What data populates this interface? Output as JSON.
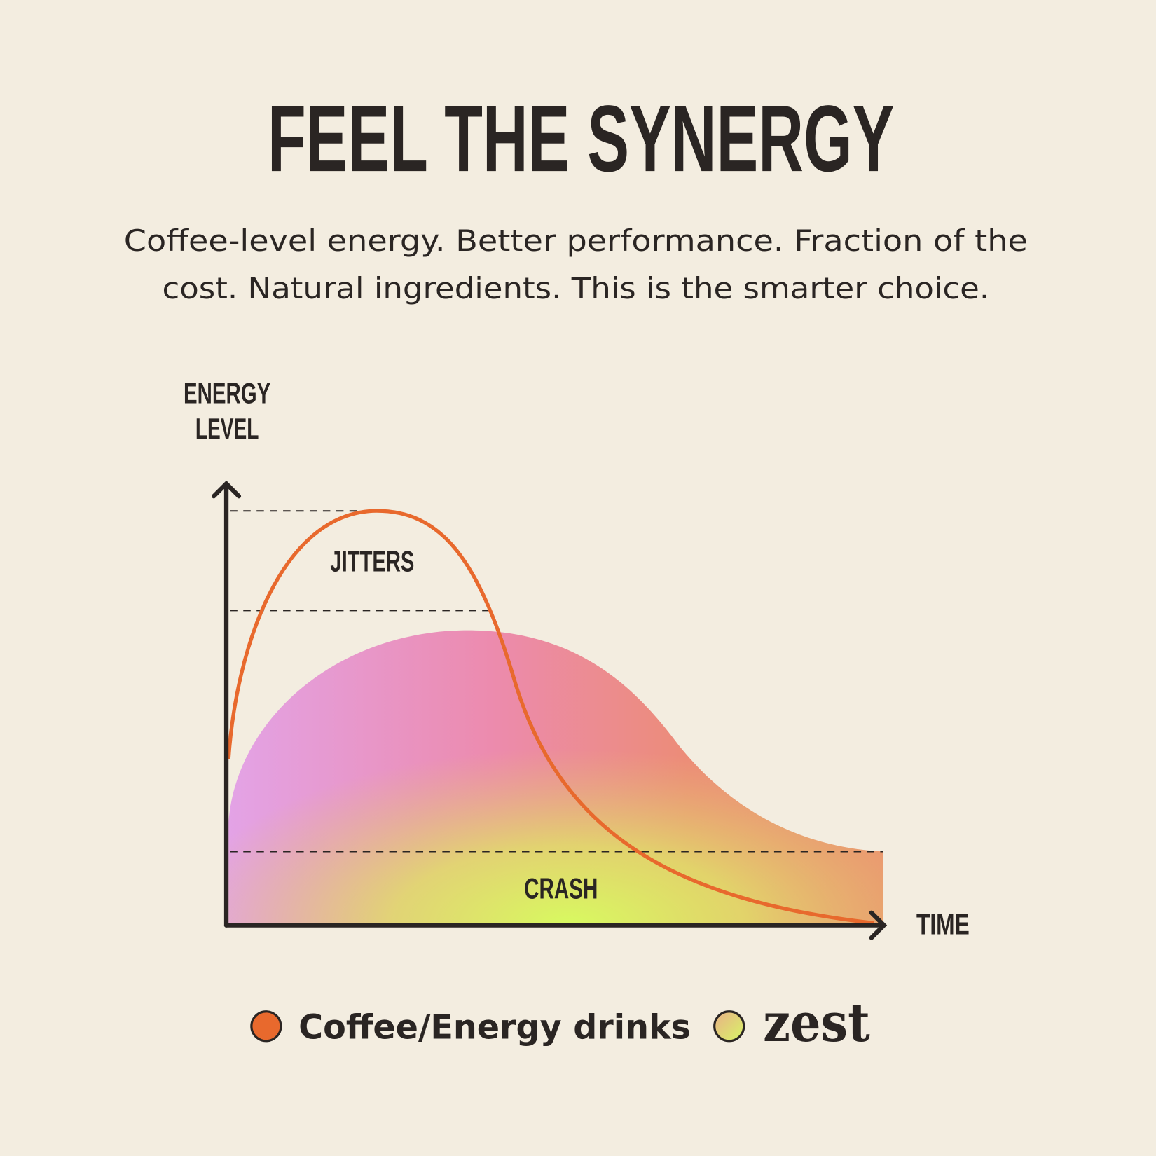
{
  "header": {
    "title": "FEEL THE SYNERGY",
    "subtitle": [
      "Coffee-level energy. Better performance. Fraction of the",
      "cost. Natural ingredients. This is the smarter choice."
    ]
  },
  "chart": {
    "y_axis_label": [
      "ENERGY",
      "LEVEL"
    ],
    "x_axis_label": "TIME",
    "annotations": [
      "JITTERS",
      "CRASH"
    ],
    "legend": [
      "Coffee/Energy drinks",
      "zest"
    ]
  }
}
